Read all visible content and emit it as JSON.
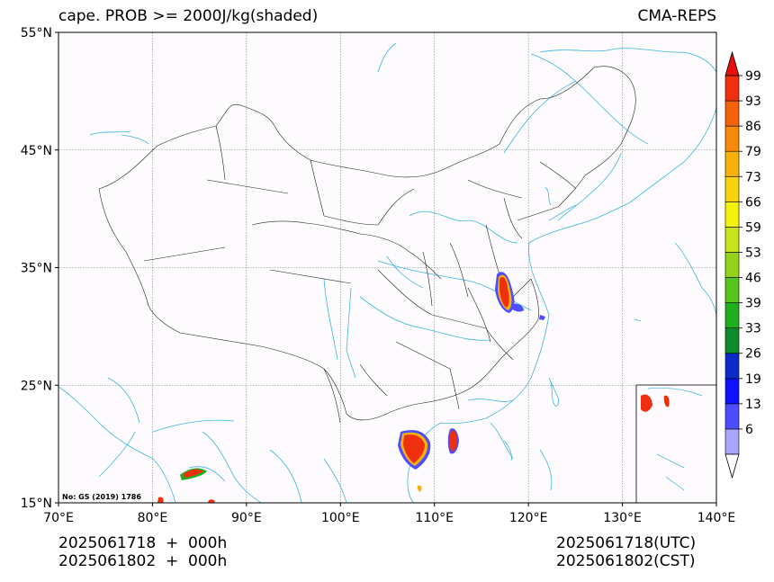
{
  "header": {
    "title_left": "cape. PROB >= 2000J/kg(shaded)",
    "title_right": "CMA-REPS"
  },
  "map": {
    "lon_range": [
      70,
      140
    ],
    "lat_range": [
      15,
      55
    ],
    "lon_ticks": [
      {
        "value": 70,
        "label": "70°E"
      },
      {
        "value": 80,
        "label": "80°E"
      },
      {
        "value": 90,
        "label": "90°E"
      },
      {
        "value": 100,
        "label": "100°E"
      },
      {
        "value": 110,
        "label": "110°E"
      },
      {
        "value": 120,
        "label": "120°E"
      },
      {
        "value": 130,
        "label": "130°E"
      },
      {
        "value": 140,
        "label": "140°E"
      }
    ],
    "lat_ticks": [
      {
        "value": 15,
        "label": "15°N"
      },
      {
        "value": 25,
        "label": "25°N"
      },
      {
        "value": 35,
        "label": "35°N"
      },
      {
        "value": 45,
        "label": "45°N"
      },
      {
        "value": 55,
        "label": "55°N"
      }
    ],
    "grid": true,
    "credit": "No: GS (2019) 1786",
    "colors": {
      "border": "#222222",
      "river": "#3fb4e0",
      "grid": "#808080",
      "background": "#fdfbfd"
    }
  },
  "colorbar": {
    "labels": [
      "6",
      "13",
      "19",
      "26",
      "33",
      "39",
      "46",
      "53",
      "59",
      "66",
      "73",
      "79",
      "86",
      "93",
      "99"
    ],
    "colors": [
      "#a6a6ff",
      "#4d4dff",
      "#1010ff",
      "#0b2ac8",
      "#0d8a2a",
      "#1fae1f",
      "#55c41e",
      "#93d31c",
      "#c8e41a",
      "#f4f20f",
      "#f9d30e",
      "#f8b10b",
      "#f78a0b",
      "#f4620c",
      "#ee3011"
    ],
    "over_color": "#e8100c",
    "under_color": "#ffffff"
  },
  "footer": {
    "left_line1": "2025061718  +  000h",
    "left_line2": "2025061802  +  000h",
    "right_line1": "2025061718(UTC)",
    "right_line2": "2025061802(CST)"
  }
}
